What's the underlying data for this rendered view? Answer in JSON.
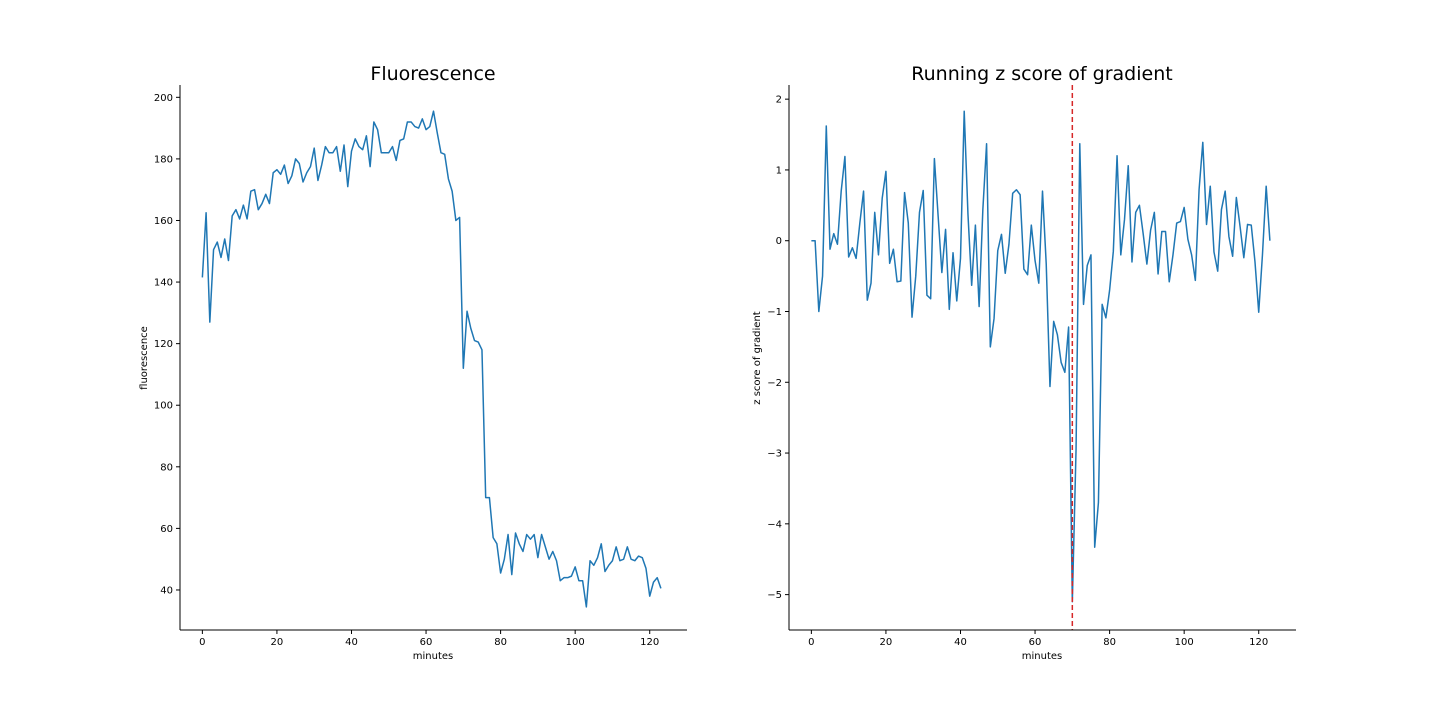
{
  "chart_data": [
    {
      "type": "line",
      "title": "Fluorescence",
      "xlabel": "minutes",
      "ylabel": "fluorescence",
      "xlim": [
        -6,
        130
      ],
      "ylim": [
        27,
        204
      ],
      "xticks": [
        0,
        20,
        40,
        60,
        80,
        100,
        120
      ],
      "yticks": [
        40,
        60,
        80,
        100,
        120,
        140,
        160,
        180,
        200
      ],
      "grid": false,
      "legend": "none",
      "color": "#1f77b4",
      "series": [
        {
          "x": [
            0,
            1,
            2,
            3,
            4,
            5,
            6,
            7,
            8,
            9,
            10,
            11,
            12,
            13,
            14,
            15,
            16,
            17,
            18,
            19,
            20,
            21,
            22,
            23,
            24,
            25,
            26,
            27,
            28,
            29,
            30,
            31,
            32,
            33,
            34,
            35,
            36,
            37,
            38,
            39,
            40,
            41,
            42,
            43,
            44,
            45,
            46,
            47,
            48,
            49,
            50,
            51,
            52,
            53,
            54,
            55,
            56,
            57,
            58,
            59,
            60,
            61,
            62,
            63,
            64,
            65,
            66,
            67,
            68,
            69,
            70,
            71,
            72,
            73,
            74,
            75,
            76,
            77,
            78,
            79,
            80,
            81,
            82,
            83,
            84,
            85,
            86,
            87,
            88,
            89,
            90,
            91,
            92,
            93,
            94,
            95,
            96,
            97,
            98,
            99,
            100,
            101,
            102,
            103,
            104,
            105,
            106,
            107,
            108,
            109,
            110,
            111,
            112,
            113,
            114,
            115,
            116,
            117,
            118,
            119,
            120,
            121,
            122,
            123
          ],
          "values": [
            141.5,
            162.5,
            127,
            150.5,
            153,
            148,
            154,
            147,
            161.5,
            163.5,
            160.5,
            165,
            160.5,
            169.5,
            170,
            163.5,
            165.5,
            168.5,
            165.5,
            175.5,
            176.5,
            175,
            178,
            172,
            174.5,
            180,
            178.5,
            172.5,
            175.5,
            177.5,
            183.5,
            173,
            178,
            184,
            182,
            182,
            184,
            176,
            184.5,
            171,
            182.5,
            186.5,
            184,
            183,
            187.5,
            177.5,
            192,
            189.5,
            182,
            182,
            182,
            184,
            179.5,
            186,
            186.5,
            192,
            192,
            190.5,
            190,
            193,
            189.5,
            190.5,
            195.5,
            188.5,
            182,
            181.5,
            173.5,
            169.5,
            160,
            161,
            112,
            130.5,
            125,
            121,
            120.5,
            118,
            70,
            70,
            57,
            55,
            45.5,
            50,
            58,
            45,
            58.5,
            55,
            52.5,
            58,
            56.5,
            58,
            50.5,
            58,
            54,
            50,
            52.5,
            49.5,
            43,
            44,
            44,
            44.5,
            47.5,
            43,
            43,
            34.5,
            49.5,
            48,
            50.5,
            55,
            46,
            48,
            49.5,
            54,
            49.5,
            50,
            54,
            50,
            49.5,
            51,
            50.5,
            47,
            38,
            42.5,
            44,
            40.5
          ]
        }
      ]
    },
    {
      "type": "line",
      "title": "Running z score of gradient",
      "xlabel": "minutes",
      "ylabel": "z score of gradient",
      "xlim": [
        -6,
        130
      ],
      "ylim": [
        -5.5,
        2.2
      ],
      "xticks": [
        0,
        20,
        40,
        60,
        80,
        100,
        120
      ],
      "yticks": [
        -5,
        -4,
        -3,
        -2,
        -1,
        0,
        1,
        2
      ],
      "ytick_labels": [
        "−5",
        "−4",
        "−3",
        "−2",
        "−1",
        "0",
        "1",
        "2"
      ],
      "grid": false,
      "legend": "none",
      "color": "#1f77b4",
      "vline": {
        "x": 70,
        "color": "#d62728",
        "style": "dashed"
      },
      "series": [
        {
          "x": [
            0,
            1,
            2,
            3,
            4,
            5,
            6,
            7,
            8,
            9,
            10,
            11,
            12,
            13,
            14,
            15,
            16,
            17,
            18,
            19,
            20,
            21,
            22,
            23,
            24,
            25,
            26,
            27,
            28,
            29,
            30,
            31,
            32,
            33,
            34,
            35,
            36,
            37,
            38,
            39,
            40,
            41,
            42,
            43,
            44,
            45,
            46,
            47,
            48,
            49,
            50,
            51,
            52,
            53,
            54,
            55,
            56,
            57,
            58,
            59,
            60,
            61,
            62,
            63,
            64,
            65,
            66,
            67,
            68,
            69,
            70,
            71,
            72,
            73,
            74,
            75,
            76,
            77,
            78,
            79,
            80,
            81,
            82,
            83,
            84,
            85,
            86,
            87,
            88,
            89,
            90,
            91,
            92,
            93,
            94,
            95,
            96,
            97,
            98,
            99,
            100,
            101,
            102,
            103,
            104,
            105,
            106,
            107,
            108,
            109,
            110,
            111,
            112,
            113,
            114,
            115,
            116,
            117,
            118,
            119,
            120,
            121,
            122,
            123
          ],
          "values": [
            0,
            0,
            -1,
            -0.5,
            1.62,
            -0.12,
            0.1,
            -0.05,
            0.7,
            1.19,
            -0.23,
            -0.1,
            -0.25,
            0.25,
            0.7,
            -0.84,
            -0.6,
            0.4,
            -0.2,
            0.6,
            0.98,
            -0.32,
            -0.12,
            -0.58,
            -0.57,
            0.68,
            0.25,
            -1.08,
            -0.5,
            0.4,
            0.71,
            -0.77,
            -0.82,
            1.16,
            0.35,
            -0.45,
            0.16,
            -0.97,
            -0.17,
            -0.85,
            -0.25,
            1.83,
            0.38,
            -0.63,
            0.22,
            -0.93,
            0.44,
            1.37,
            -1.5,
            -1.1,
            -0.14,
            0.09,
            -0.46,
            -0.05,
            0.67,
            0.72,
            0.65,
            -0.4,
            -0.48,
            0.22,
            -0.28,
            -0.6,
            0.7,
            -0.33,
            -2.06,
            -1.14,
            -1.33,
            -1.72,
            -1.86,
            -1.22,
            -5.1,
            -2.95,
            1.37,
            -0.9,
            -0.35,
            -0.2,
            -4.33,
            -3.7,
            -0.9,
            -1.09,
            -0.7,
            -0.15,
            1.2,
            -0.2,
            0.3,
            1.06,
            -0.3,
            0.4,
            0.5,
            0.1,
            -0.33,
            0.15,
            0.4,
            -0.47,
            0.13,
            0.13,
            -0.58,
            -0.2,
            0.25,
            0.27,
            0.47,
            0.02,
            -0.2,
            -0.56,
            0.72,
            1.39,
            0.23,
            0.77,
            -0.16,
            -0.43,
            0.44,
            0.7,
            0.06,
            -0.22,
            0.61,
            0.2,
            -0.24,
            0.23,
            0.22,
            -0.3,
            -1.01,
            -0.2,
            0.77,
            0
          ]
        }
      ]
    }
  ]
}
